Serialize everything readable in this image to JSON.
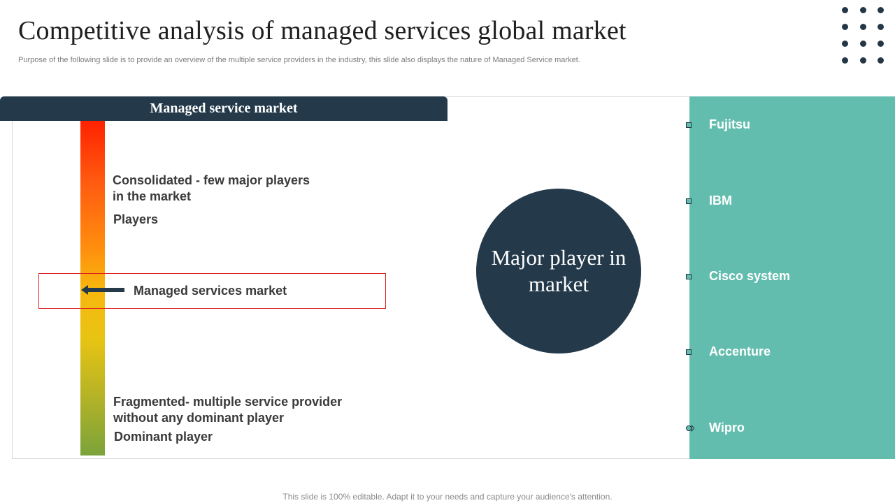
{
  "slide": {
    "title": "Competitive analysis of managed services global market",
    "subtitle": "Purpose of the following slide is to provide an overview  of the multiple service providers in the industry, this slide also displays the nature of Managed Service market.",
    "footer": "This slide is 100% editable. Adapt it to your needs and capture your audience's attention."
  },
  "market": {
    "header": "Managed service market",
    "top_label": "Consolidated - few major players in the market",
    "top_sublabel": "Players",
    "highlight_label": "Managed services market",
    "bottom_label": "Fragmented- multiple service provider without any dominant player",
    "bottom_sublabel": "Dominant player",
    "gradient_colors": [
      "#ff2200",
      "#ff8e0e",
      "#e8c412",
      "#7ba33a"
    ]
  },
  "center": {
    "circle_text": "Major player in market"
  },
  "players": {
    "items": [
      {
        "name": "Fujitsu"
      },
      {
        "name": "IBM"
      },
      {
        "name": "Cisco system"
      },
      {
        "name": "Accenture"
      },
      {
        "name": "Wipro"
      }
    ]
  },
  "colors": {
    "navy": "#243a4b",
    "teal": "#63bdae",
    "highlight_border": "#e02020"
  }
}
